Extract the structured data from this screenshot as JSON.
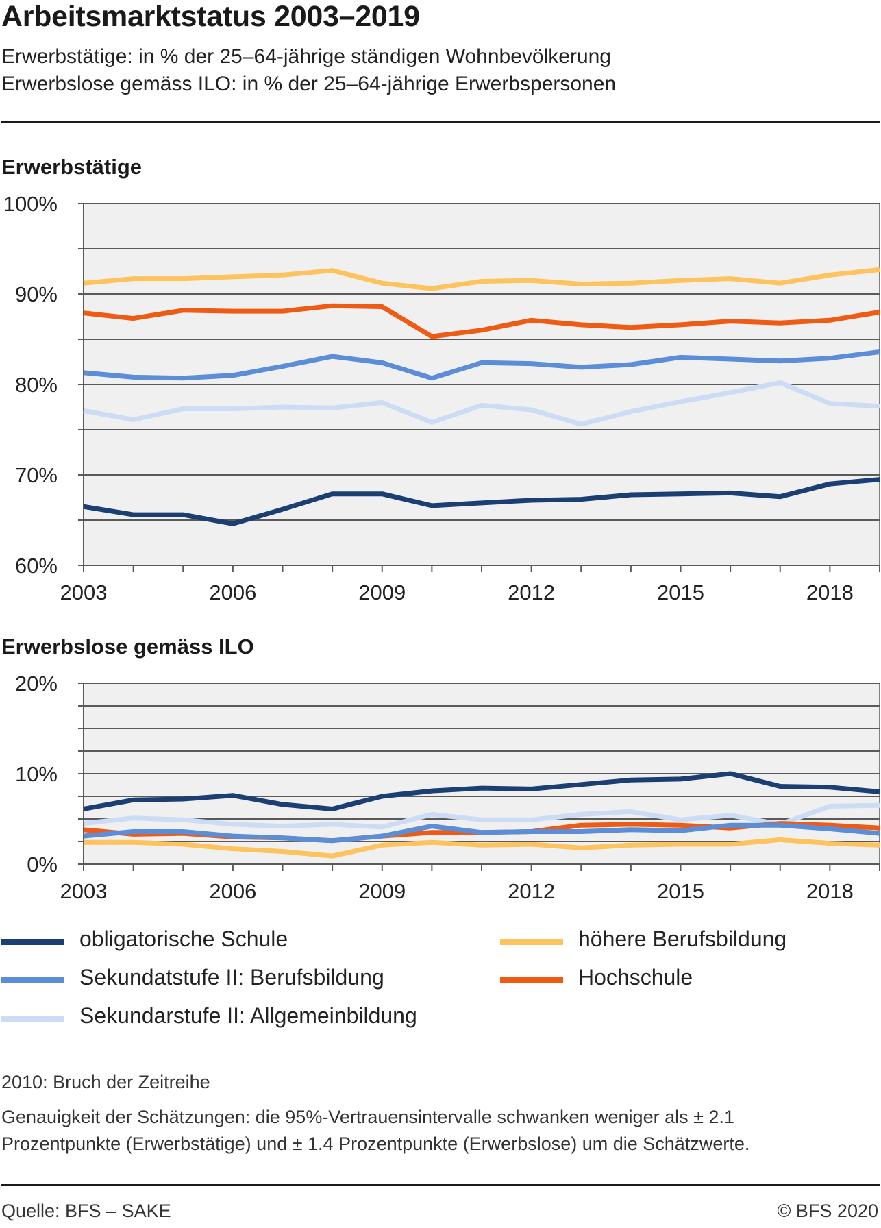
{
  "title": "Arbeitsmarktstatus 2003–2019",
  "subtitles": [
    "Erwerbstätige: in % der 25–64-jährige ständigen Wohnbevölkerung",
    "Erwerbslose gemäss ILO: in % der 25–64-jährige Erwerbspersonen"
  ],
  "colors": {
    "obligatorische Schule": "#1b3f73",
    "Sekundatstufe II: Berufsbildung": "#5b8ed6",
    "Sekundarstufe II: Allgemeinbildung": "#ccdcf5",
    "höhere Berufsbildung": "#fdc35e",
    "Hochschule": "#ee5b14",
    "plot_background": "#f0f0f0",
    "grid": "#5a5a5a"
  },
  "legend": [
    {
      "label": "obligatorische Schule",
      "color": "#1b3f73"
    },
    {
      "label": "Sekundatstufe II: Berufsbildung",
      "color": "#5b8ed6"
    },
    {
      "label": "Sekundarstufe II: Allgemeinbildung",
      "color": "#ccdcf5"
    },
    {
      "label": "höhere Berufsbildung",
      "color": "#fdc35e"
    },
    {
      "label": "Hochschule",
      "color": "#ee5b14"
    }
  ],
  "chart_data": [
    {
      "type": "line",
      "title": "Erwerbstätige",
      "x": [
        2003,
        2004,
        2005,
        2006,
        2007,
        2008,
        2009,
        2010,
        2011,
        2012,
        2013,
        2014,
        2015,
        2016,
        2017,
        2018,
        2019
      ],
      "x_tick_labels": [
        "2003",
        "2006",
        "2009",
        "2012",
        "2015",
        "2018"
      ],
      "y_tick_labels": [
        "100%",
        "90%",
        "80%",
        "70%",
        "60%"
      ],
      "ylim": [
        60,
        100
      ],
      "grid": true,
      "series": [
        {
          "name": "höhere Berufsbildung",
          "values": [
            91.2,
            91.7,
            91.7,
            91.9,
            92.1,
            92.6,
            91.2,
            90.6,
            91.4,
            91.5,
            91.1,
            91.2,
            91.5,
            91.7,
            91.2,
            92.1,
            92.7
          ]
        },
        {
          "name": "Hochschule",
          "values": [
            87.9,
            87.3,
            88.2,
            88.1,
            88.1,
            88.7,
            88.6,
            85.3,
            86.0,
            87.1,
            86.6,
            86.3,
            86.6,
            87.0,
            86.8,
            87.1,
            88.0
          ]
        },
        {
          "name": "Sekundatstufe II: Berufsbildung",
          "values": [
            81.3,
            80.8,
            80.7,
            81.0,
            82.0,
            83.1,
            82.4,
            80.7,
            82.4,
            82.3,
            81.9,
            82.2,
            83.0,
            82.8,
            82.6,
            82.9,
            83.6
          ]
        },
        {
          "name": "Sekundarstufe II: Allgemeinbildung",
          "values": [
            77.1,
            76.1,
            77.3,
            77.3,
            77.5,
            77.4,
            78.0,
            75.8,
            77.7,
            77.2,
            75.6,
            77.0,
            78.1,
            79.1,
            80.2,
            77.9,
            77.6
          ]
        },
        {
          "name": "obligatorische Schule",
          "values": [
            66.5,
            65.6,
            65.6,
            64.6,
            66.2,
            67.9,
            67.9,
            66.6,
            66.9,
            67.2,
            67.3,
            67.8,
            67.9,
            68.0,
            67.6,
            69.0,
            69.5
          ]
        }
      ]
    },
    {
      "type": "line",
      "title": "Erwerbslose gemäss ILO",
      "x": [
        2003,
        2004,
        2005,
        2006,
        2007,
        2008,
        2009,
        2010,
        2011,
        2012,
        2013,
        2014,
        2015,
        2016,
        2017,
        2018,
        2019
      ],
      "x_tick_labels": [
        "2003",
        "2006",
        "2009",
        "2012",
        "2015",
        "2018"
      ],
      "y_tick_labels": [
        "20%",
        "10%",
        "0%"
      ],
      "ylim": [
        0,
        20
      ],
      "grid": true,
      "series": [
        {
          "name": "Sekundarstufe II: Allgemeinbildung",
          "values": [
            4.5,
            5.1,
            4.9,
            4.4,
            4.2,
            4.4,
            4.1,
            5.5,
            4.9,
            4.9,
            5.5,
            5.8,
            4.9,
            5.4,
            4.4,
            6.4,
            6.5
          ]
        },
        {
          "name": "Hochschule",
          "values": [
            3.8,
            3.3,
            3.4,
            3.0,
            2.9,
            2.6,
            3.1,
            3.5,
            3.5,
            3.6,
            4.3,
            4.4,
            4.3,
            4.0,
            4.5,
            4.3,
            4.0
          ]
        },
        {
          "name": "Sekundatstufe II: Berufsbildung",
          "values": [
            3.1,
            3.6,
            3.6,
            3.1,
            2.9,
            2.6,
            3.1,
            4.2,
            3.5,
            3.6,
            3.6,
            3.8,
            3.7,
            4.3,
            4.3,
            3.9,
            3.4
          ]
        },
        {
          "name": "höhere Berufsbildung",
          "values": [
            2.4,
            2.4,
            2.2,
            1.7,
            1.4,
            0.9,
            2.1,
            2.4,
            2.1,
            2.2,
            1.8,
            2.1,
            2.2,
            2.2,
            2.7,
            2.3,
            2.1
          ]
        },
        {
          "name": "obligatorische Schule",
          "values": [
            6.1,
            7.1,
            7.2,
            7.6,
            6.6,
            6.1,
            7.5,
            8.1,
            8.4,
            8.3,
            8.8,
            9.3,
            9.4,
            10.0,
            8.6,
            8.5,
            8.0
          ]
        }
      ]
    }
  ],
  "notes": [
    "2010: Bruch der Zeitreihe",
    "Genauigkeit der Schätzungen: die 95%-Vertrauensintervalle schwanken weniger als ± 2.1",
    "Prozentpunkte (Erwerbstätige) und ± 1.4 Prozentpunkte (Erwerbslose) um die Schätzwerte."
  ],
  "source": "Quelle: BFS – SAKE",
  "copyright": "© BFS 2020"
}
